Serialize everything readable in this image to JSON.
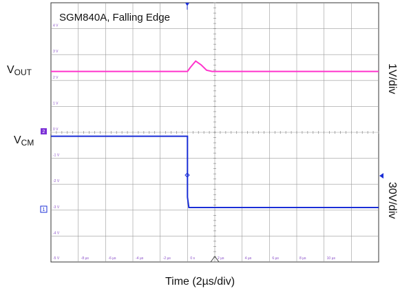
{
  "chart_data": {
    "type": "line",
    "title": "SGM840A, Falling Edge",
    "xlabel": "Time (2µs/div)",
    "x_divisions": 12,
    "y_divisions": 10,
    "x_tick_labels": [
      "-8 µs",
      "-6 µs",
      "-4 µs",
      "-2 µs",
      "0 s",
      "2 µs",
      "4 µs",
      "6 µs",
      "8 µs",
      "10 µs"
    ],
    "y_tick_labels": [
      "4 V",
      "3 V",
      "2 V",
      "1 V",
      "0 V",
      "-1 V",
      "-2 V",
      "-3 V",
      "-4 V",
      "-5 V"
    ],
    "series": [
      {
        "name": "V_OUT",
        "label": "V",
        "label_sub": "OUT",
        "scale": "1V/div",
        "color": "#ff33cc",
        "x_div": [
          0,
          5.0,
          5.1,
          5.3,
          5.5,
          5.7,
          5.9,
          6.0,
          12
        ],
        "y_div": [
          7.35,
          7.35,
          7.5,
          7.75,
          7.6,
          7.4,
          7.35,
          7.35,
          7.35
        ]
      },
      {
        "name": "V_CM",
        "label": "V",
        "label_sub": "CM",
        "scale": "30V/div",
        "color": "#1a2ed6",
        "x_div": [
          0,
          5.0,
          5.0,
          5.05,
          12
        ],
        "y_div": [
          4.85,
          4.85,
          2.5,
          2.1,
          2.1
        ]
      }
    ],
    "channel_markers": [
      "2",
      "1"
    ],
    "grid": true
  }
}
